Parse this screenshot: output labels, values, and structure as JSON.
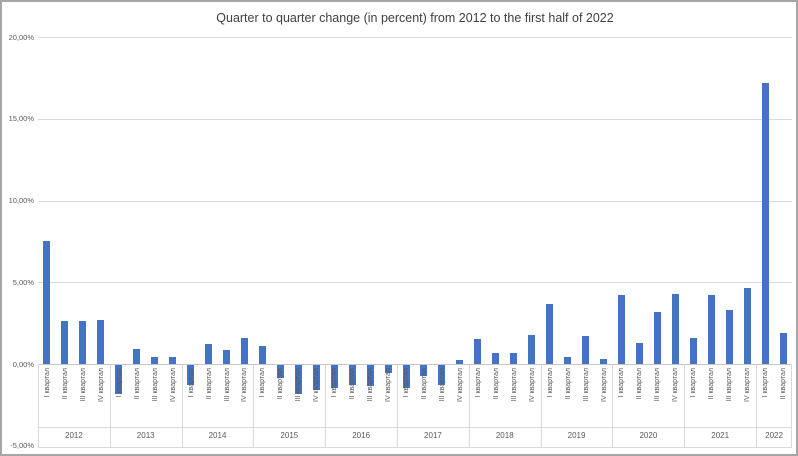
{
  "chart_data": {
    "type": "bar",
    "title": "Quarter to quarter change (in percent) from 2012 to the first half of 2022",
    "bar_color": "#4472C4",
    "gridline_color": "#d9d9d9",
    "text_color": "#595959",
    "ylim": [
      -5,
      20
    ],
    "ytick_step": 5,
    "yticks": [
      {
        "value": 20,
        "label": "20,00%"
      },
      {
        "value": 15,
        "label": "15,00%"
      },
      {
        "value": 10,
        "label": "10,00%"
      },
      {
        "value": 5,
        "label": "5,00%"
      },
      {
        "value": 0,
        "label": "0,00%"
      },
      {
        "value": -5,
        "label": "-5,00%"
      }
    ],
    "quarter_labels": [
      "I квартал",
      "II квартал",
      "III квартал",
      "IV квартал"
    ],
    "groups": [
      {
        "year": "2012",
        "values": [
          7.5,
          2.65,
          2.65,
          2.7
        ]
      },
      {
        "year": "2013",
        "values": [
          -1.8,
          0.9,
          0.45,
          0.4
        ]
      },
      {
        "year": "2014",
        "values": [
          -1.2,
          1.25,
          0.85,
          1.6
        ]
      },
      {
        "year": "2015",
        "values": [
          1.1,
          -0.8,
          -1.8,
          -1.5
        ]
      },
      {
        "year": "2016",
        "values": [
          -1.4,
          -1.2,
          -1.3,
          -0.5
        ]
      },
      {
        "year": "2017",
        "values": [
          -1.4,
          -0.65,
          -1.2,
          0.25
        ]
      },
      {
        "year": "2018",
        "values": [
          1.5,
          0.7,
          0.65,
          1.75
        ]
      },
      {
        "year": "2019",
        "values": [
          3.7,
          0.4,
          1.7,
          0.3
        ]
      },
      {
        "year": "2020",
        "values": [
          4.2,
          1.3,
          3.2,
          4.3
        ]
      },
      {
        "year": "2021",
        "values": [
          1.6,
          4.2,
          3.3,
          4.65
        ]
      },
      {
        "year": "2022",
        "values": [
          17.2,
          1.9
        ]
      }
    ],
    "grid": true,
    "legend": null
  }
}
